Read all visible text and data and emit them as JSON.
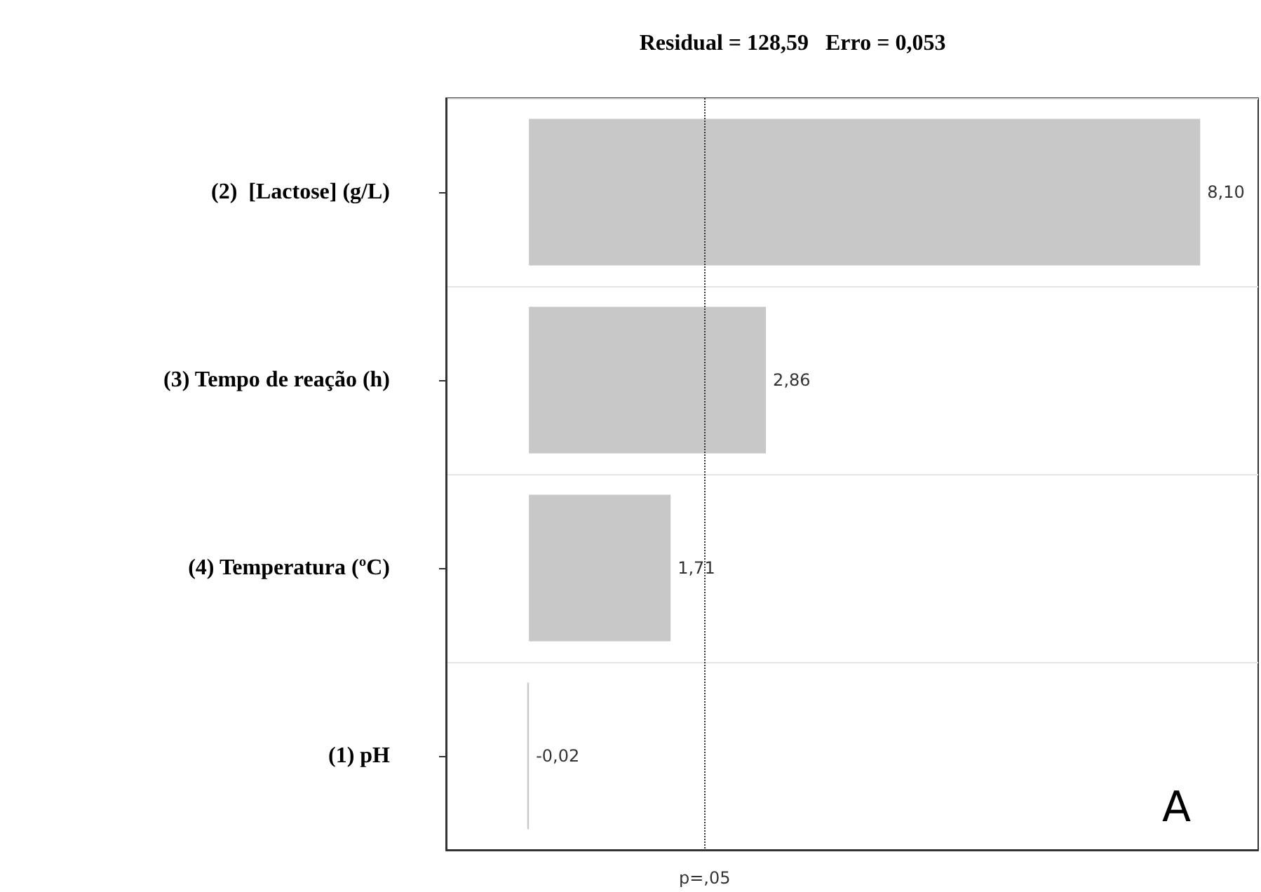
{
  "chart_data": {
    "type": "bar",
    "orientation": "horizontal",
    "title": "Residual = 128,59   Erro = 0,053",
    "categories": [
      "(2)  [Lactose] (g/L)",
      "(3) Tempo de reação (h)",
      "(4) Temperatura (ºC)",
      "(1) pH"
    ],
    "values": [
      8.1,
      2.86,
      1.71,
      -0.02
    ],
    "color": "#c8c8c8",
    "value_labels": [
      "8,10",
      "2,86",
      "1,71",
      "-0,02"
    ],
    "xlim": [
      -1,
      8.8
    ],
    "ref_lines": [
      {
        "axis": "x",
        "value": 2.12,
        "label": "p=,05",
        "line_style": "dotted",
        "color": "#333333"
      }
    ],
    "annotations": [
      "A"
    ],
    "grid": "y",
    "tick_labels": "y"
  }
}
